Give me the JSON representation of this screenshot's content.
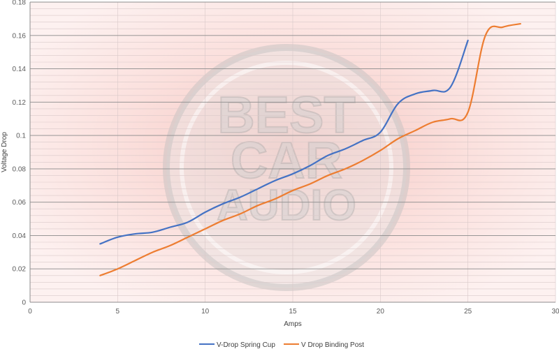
{
  "watermark": {
    "line1": "BEST",
    "line2": "CAR",
    "line3": "AUDIO"
  },
  "chart_data": {
    "type": "line",
    "title": "",
    "xlabel": "Amps",
    "ylabel": "Voltage Drop",
    "xlim": [
      0,
      30
    ],
    "ylim": [
      0,
      0.18
    ],
    "x_ticks": [
      0,
      5,
      10,
      15,
      20,
      25,
      30
    ],
    "y_ticks": [
      0,
      0.02,
      0.04,
      0.06,
      0.08,
      0.1,
      0.12,
      0.14,
      0.16,
      0.18
    ],
    "x_tick_labels": [
      "0",
      "5",
      "10",
      "15",
      "20",
      "25",
      "30"
    ],
    "y_tick_labels": [
      "0",
      "0.02",
      "0.04",
      "0.06",
      "0.08",
      "0.1",
      "0.12",
      "0.14",
      "0.16",
      "0.18"
    ],
    "grid": true,
    "legend_position": "bottom",
    "series": [
      {
        "name": "V-Drop Spring Cup",
        "color": "#4472c4",
        "x": [
          4,
          5,
          6,
          7,
          8,
          9,
          10,
          11,
          12,
          13,
          14,
          15,
          16,
          17,
          18,
          19,
          20,
          21,
          22,
          23,
          24,
          25
        ],
        "y": [
          0.035,
          0.039,
          0.041,
          0.042,
          0.045,
          0.048,
          0.054,
          0.059,
          0.063,
          0.068,
          0.073,
          0.077,
          0.082,
          0.088,
          0.092,
          0.097,
          0.102,
          0.119,
          0.125,
          0.127,
          0.129,
          0.157
        ]
      },
      {
        "name": "V Drop Binding Post",
        "color": "#ed7d31",
        "x": [
          4,
          5,
          6,
          7,
          8,
          9,
          10,
          11,
          12,
          13,
          14,
          15,
          16,
          17,
          18,
          19,
          20,
          21,
          22,
          23,
          24,
          25,
          26,
          27,
          28
        ],
        "y": [
          0.016,
          0.02,
          0.025,
          0.03,
          0.034,
          0.039,
          0.044,
          0.049,
          0.053,
          0.058,
          0.062,
          0.067,
          0.071,
          0.076,
          0.08,
          0.085,
          0.091,
          0.098,
          0.103,
          0.108,
          0.11,
          0.114,
          0.16,
          0.165,
          0.167
        ]
      }
    ]
  }
}
